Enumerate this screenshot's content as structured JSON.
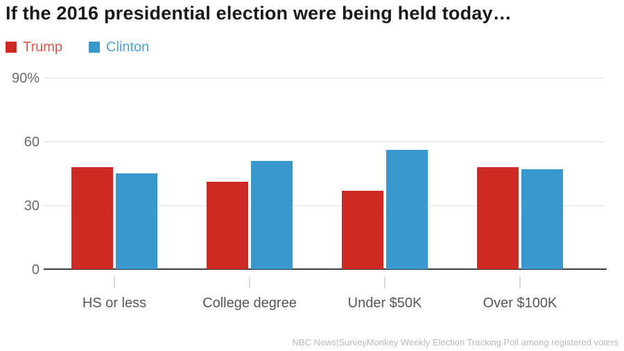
{
  "title": "If the 2016 presidential election were being held today…",
  "legend": [
    {
      "label": "Trump",
      "color": "#cd2a24",
      "text_color": "#e0564c"
    },
    {
      "label": "Clinton",
      "color": "#3897cd",
      "text_color": "#4fa3d7"
    }
  ],
  "source": "NBC News|SurveyMonkey Weekly Election Tracking Poll among registered voters",
  "chart_data": {
    "type": "bar",
    "title": "If the 2016 presidential election were being held today…",
    "categories": [
      "HS or less",
      "College degree",
      "Under $50K",
      "Over $100K"
    ],
    "series": [
      {
        "name": "Trump",
        "color": "#cd2a24",
        "values": [
          48,
          41,
          37,
          48
        ]
      },
      {
        "name": "Clinton",
        "color": "#3897cd",
        "values": [
          45,
          51,
          56,
          47
        ]
      }
    ],
    "xlabel": "",
    "ylabel": "",
    "ylim": [
      0,
      90
    ],
    "yticks": [
      {
        "value": 90,
        "label": "90%"
      },
      {
        "value": 60,
        "label": "60"
      },
      {
        "value": 30,
        "label": "30"
      },
      {
        "value": 0,
        "label": "0"
      }
    ],
    "grid": true,
    "legend_position": "top-left",
    "source_note": "NBC News|SurveyMonkey Weekly Election Tracking Poll among registered voters"
  }
}
